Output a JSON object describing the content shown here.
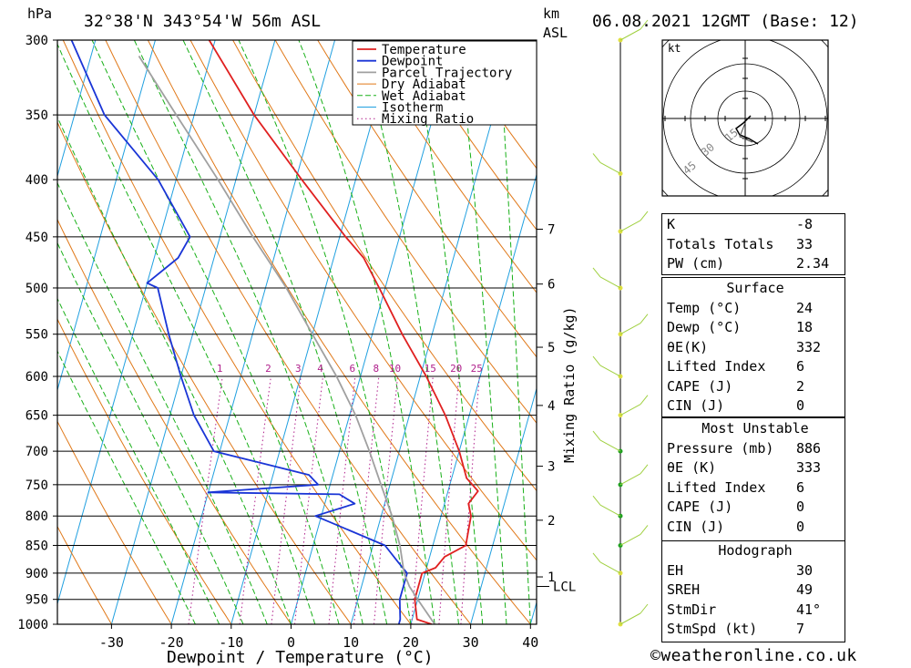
{
  "header": {
    "pressure_unit": "hPa",
    "location": "32°38'N  343°54'W  56m  ASL",
    "height_unit_line1": "km",
    "height_unit_line2": "ASL",
    "datetime": "06.08.2021  12GMT  (Base: 12)"
  },
  "chart_data": {
    "type": "skew-t",
    "xlabel": "Dewpoint / Temperature (°C)",
    "right_axis_label": "Mixing Ratio (g/kg)",
    "pressure_levels": [
      300,
      350,
      400,
      450,
      500,
      550,
      600,
      650,
      700,
      750,
      800,
      850,
      900,
      950,
      1000
    ],
    "temperature_ticks": [
      -30,
      -20,
      -10,
      0,
      10,
      20,
      30,
      40
    ],
    "height_ticks": [
      {
        "label": "7",
        "p": 443
      },
      {
        "label": "6",
        "p": 496
      },
      {
        "label": "5",
        "p": 565
      },
      {
        "label": "4",
        "p": 637
      },
      {
        "label": "3",
        "p": 722
      },
      {
        "label": "2",
        "p": 807
      },
      {
        "label": "1",
        "p": 907
      }
    ],
    "lcl": {
      "label": "LCL",
      "p": 925
    },
    "mixing_ratio_labels": [
      "1",
      "2",
      "3",
      "4",
      "6",
      "8",
      "10",
      "15",
      "20",
      "25"
    ],
    "mixing_ratio_values": [
      1,
      2,
      3,
      4,
      6,
      8,
      10,
      15,
      20,
      25
    ],
    "legend": [
      "Temperature",
      "Dewpoint",
      "Parcel Trajectory",
      "Dry Adiabat",
      "Wet Adiabat",
      "Isotherm",
      "Mixing Ratio"
    ],
    "colors": {
      "temperature": "#e02020",
      "dewpoint": "#1a35d6",
      "parcel": "#a0a0a0",
      "dry_adiabat": "#e07818",
      "wet_adiabat": "#18b018",
      "isotherm": "#20a0e0",
      "mixing_ratio": "#b0208c"
    },
    "series": [
      {
        "name": "Temperature",
        "points": [
          [
            1000,
            23.5
          ],
          [
            990,
            20.8
          ],
          [
            950,
            19.5
          ],
          [
            900,
            19.5
          ],
          [
            890,
            21.5
          ],
          [
            870,
            22.5
          ],
          [
            850,
            25.5
          ],
          [
            800,
            25
          ],
          [
            780,
            24
          ],
          [
            760,
            25
          ],
          [
            740,
            22.5
          ],
          [
            700,
            20
          ],
          [
            650,
            16
          ],
          [
            600,
            11
          ],
          [
            550,
            5
          ],
          [
            500,
            -1
          ],
          [
            470,
            -5
          ],
          [
            450,
            -9
          ],
          [
            400,
            -19
          ],
          [
            350,
            -30
          ],
          [
            300,
            -41
          ]
        ]
      },
      {
        "name": "Dewpoint",
        "points": [
          [
            1000,
            18
          ],
          [
            990,
            18
          ],
          [
            950,
            17
          ],
          [
            900,
            17
          ],
          [
            880,
            15
          ],
          [
            850,
            12
          ],
          [
            800,
            -1
          ],
          [
            780,
            5
          ],
          [
            765,
            2
          ],
          [
            762,
            -20
          ],
          [
            750,
            -2
          ],
          [
            735,
            -4
          ],
          [
            700,
            -21
          ],
          [
            650,
            -26
          ],
          [
            600,
            -30
          ],
          [
            550,
            -34
          ],
          [
            500,
            -38
          ],
          [
            495,
            -40
          ],
          [
            470,
            -36
          ],
          [
            450,
            -35
          ],
          [
            400,
            -43
          ],
          [
            370,
            -50
          ],
          [
            350,
            -55
          ],
          [
            300,
            -64
          ]
        ]
      },
      {
        "name": "Parcel Trajectory",
        "points": [
          [
            1000,
            24
          ],
          [
            950,
            20
          ],
          [
            925,
            18
          ],
          [
            900,
            16.5
          ],
          [
            850,
            14.5
          ],
          [
            800,
            11.8
          ],
          [
            750,
            8.5
          ],
          [
            700,
            5
          ],
          [
            650,
            1
          ],
          [
            600,
            -4
          ],
          [
            550,
            -10
          ],
          [
            500,
            -16.5
          ],
          [
            450,
            -24.5
          ],
          [
            400,
            -33
          ],
          [
            350,
            -43
          ],
          [
            310,
            -52
          ]
        ]
      }
    ],
    "hodograph": {
      "unit_label": "kt",
      "ring_labels": [
        "15",
        "30",
        "45"
      ]
    },
    "wind_barbs_column": true
  },
  "indices": {
    "rows": [
      [
        "K",
        "-8"
      ],
      [
        "Totals Totals",
        "33"
      ],
      [
        "PW (cm)",
        "2.34"
      ]
    ],
    "surface": {
      "title": "Surface",
      "rows": [
        [
          "Temp (°C)",
          "24"
        ],
        [
          "Dewp (°C)",
          "18"
        ],
        [
          "θE(K)",
          "332"
        ],
        [
          "Lifted Index",
          "6"
        ],
        [
          "CAPE (J)",
          "2"
        ],
        [
          "CIN (J)",
          "0"
        ]
      ]
    },
    "most_unstable": {
      "title": "Most Unstable",
      "rows": [
        [
          "Pressure (mb)",
          "886"
        ],
        [
          "θE (K)",
          "333"
        ],
        [
          "Lifted Index",
          "6"
        ],
        [
          "CAPE (J)",
          "0"
        ],
        [
          "CIN (J)",
          "0"
        ]
      ]
    },
    "hodograph": {
      "title": "Hodograph",
      "rows": [
        [
          "EH",
          "30"
        ],
        [
          "SREH",
          "49"
        ],
        [
          "StmDir",
          "41°"
        ],
        [
          "StmSpd (kt)",
          "7"
        ]
      ]
    }
  },
  "footer": {
    "copyright": "©weatheronline.co.uk"
  }
}
